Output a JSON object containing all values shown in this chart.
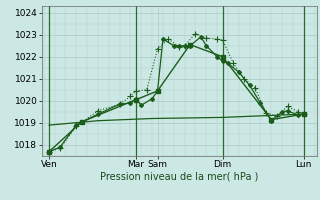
{
  "bg_color": "#cce8e4",
  "grid_color": "#b0cccc",
  "line_color_main": "#1a5c1a",
  "ylabel": "Pression niveau de la mer( hPa )",
  "ylim": [
    1017.5,
    1024.3
  ],
  "yticks": [
    1018,
    1019,
    1020,
    1021,
    1022,
    1023,
    1024
  ],
  "xlim": [
    -0.2,
    25.2
  ],
  "xtick_positions": [
    0.5,
    8.5,
    10.5,
    16.5,
    24.0
  ],
  "xtick_labels": [
    "Ven",
    "Mar",
    "Sam",
    "Dim",
    "Lun"
  ],
  "vlines": [
    0.5,
    8.5,
    16.5,
    24.0
  ],
  "series1_x": [
    0.5,
    1.5,
    3.0,
    5.0,
    7.0,
    8.0,
    8.5,
    9.0,
    10.0,
    10.5,
    11.0,
    12.0,
    12.5,
    13.0,
    13.5,
    14.5,
    15.0,
    16.0,
    16.5,
    17.0,
    18.0,
    19.0,
    20.0,
    21.0,
    22.0,
    22.5,
    23.5,
    24.0
  ],
  "series1_y": [
    1017.7,
    1017.9,
    1018.9,
    1019.4,
    1019.85,
    1019.9,
    1020.1,
    1019.8,
    1020.1,
    1020.45,
    1022.8,
    1022.5,
    1022.5,
    1022.5,
    1022.5,
    1022.9,
    1022.5,
    1022.0,
    1021.8,
    1021.7,
    1021.3,
    1020.7,
    1019.9,
    1019.1,
    1019.5,
    1019.55,
    1019.35,
    1019.4
  ],
  "series2_x": [
    0.5,
    1.5,
    3.0,
    5.0,
    7.0,
    8.0,
    8.5,
    9.5,
    10.5,
    11.5,
    12.5,
    13.0,
    14.0,
    15.0,
    16.0,
    16.5,
    17.5,
    18.5,
    19.5,
    20.5,
    21.5,
    22.5,
    23.5,
    24.0
  ],
  "series2_y": [
    1017.7,
    1017.85,
    1018.85,
    1019.55,
    1019.85,
    1020.2,
    1020.45,
    1020.5,
    1022.35,
    1022.8,
    1022.45,
    1022.5,
    1023.05,
    1022.85,
    1022.8,
    1022.75,
    1021.7,
    1021.0,
    1020.6,
    1019.45,
    1019.3,
    1019.75,
    1019.5,
    1019.4
  ],
  "series3_x": [
    0.5,
    3.5,
    8.5,
    10.5,
    13.5,
    16.5,
    21.0,
    24.0
  ],
  "series3_y": [
    1017.7,
    1019.05,
    1020.05,
    1020.45,
    1022.55,
    1022.0,
    1019.15,
    1019.4
  ],
  "series4_x": [
    0.5,
    5.0,
    10.0,
    16.5,
    24.0
  ],
  "series4_y": [
    1018.9,
    1019.1,
    1019.2,
    1019.25,
    1019.4
  ]
}
